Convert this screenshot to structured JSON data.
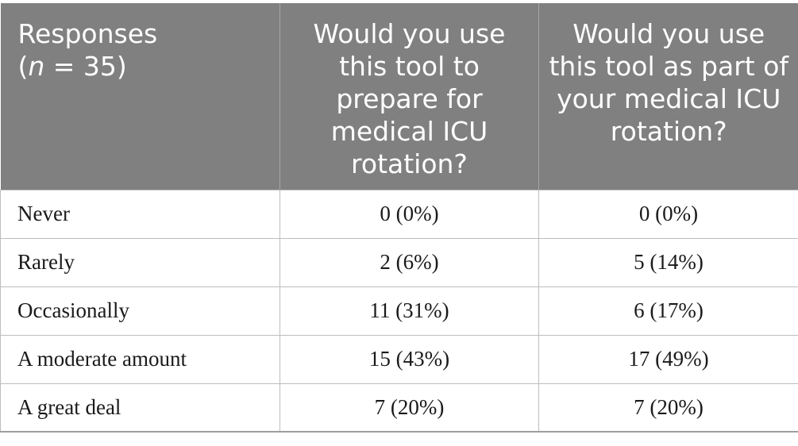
{
  "table": {
    "header": {
      "col1_line1": "Responses",
      "col1_open": "(",
      "col1_var": "n",
      "col1_rest": " = 35)",
      "col2": "Would you use this tool to prepare for medical ICU rotation?",
      "col3": "Would you use this tool as part of your medical ICU rotation?"
    },
    "rows": [
      {
        "label": "Never",
        "prepare": "0 (0%)",
        "part_of": "0 (0%)"
      },
      {
        "label": "Rarely",
        "prepare": "2 (6%)",
        "part_of": "5 (14%)"
      },
      {
        "label": "Occasionally",
        "prepare": "11 (31%)",
        "part_of": "6 (17%)"
      },
      {
        "label": "A moderate amount",
        "prepare": "15 (43%)",
        "part_of": "17 (49%)"
      },
      {
        "label": "A great deal",
        "prepare": "7 (20%)",
        "part_of": "7 (20%)"
      }
    ]
  }
}
